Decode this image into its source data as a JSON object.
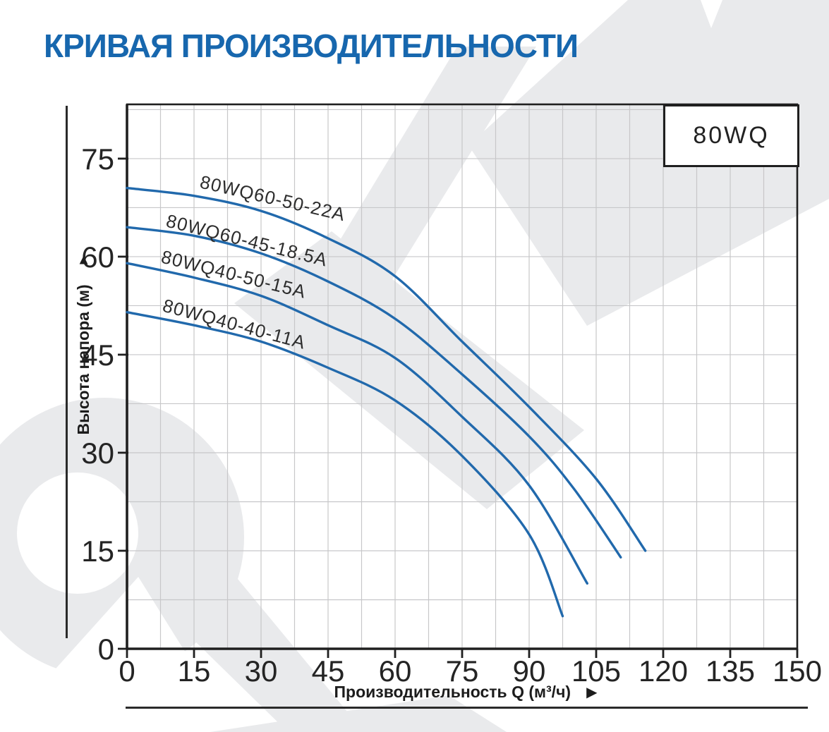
{
  "chart_data": {
    "type": "line",
    "title": "КРИВАЯ ПРОИЗВОДИТЕЛЬНОСТИ",
    "family_label": "80WQ",
    "x_axis": {
      "label": "Производительность Q (м³/ч)",
      "arrow": "▶",
      "ticks": [
        0,
        15,
        30,
        45,
        60,
        75,
        90,
        105,
        120,
        135,
        150
      ],
      "min": 0,
      "max": 150,
      "minor_step": 7.5
    },
    "y_axis": {
      "label": "Высота напора (м)",
      "arrow": "▲",
      "ticks": [
        0,
        15,
        30,
        45,
        60,
        75
      ],
      "min": 0,
      "max": 83.3,
      "minor_step": 7.5
    },
    "grid": true,
    "legend": "labels-on-curves",
    "colors": {
      "curve": "#2169ac",
      "grid": "#c7c7c9",
      "axis": "#1f1f1f",
      "title": "#1767ae",
      "watermark": "#e9eaec"
    },
    "series": [
      {
        "name": "80WQ60-50-22A",
        "points": [
          [
            0,
            70.5
          ],
          [
            15,
            69.3
          ],
          [
            30,
            67
          ],
          [
            45,
            62.8
          ],
          [
            60,
            57
          ],
          [
            75,
            47
          ],
          [
            90,
            37
          ],
          [
            105,
            26
          ],
          [
            116,
            15
          ]
        ],
        "label_pos": {
          "x": 282,
          "y": 266,
          "angle": 13
        }
      },
      {
        "name": "80WQ60-45-18.5A",
        "points": [
          [
            0,
            64.5
          ],
          [
            15,
            63.2
          ],
          [
            30,
            60.5
          ],
          [
            45,
            56.2
          ],
          [
            60,
            50.5
          ],
          [
            75,
            42
          ],
          [
            90,
            32.5
          ],
          [
            100,
            24.5
          ],
          [
            110.5,
            14
          ]
        ],
        "label_pos": {
          "x": 234,
          "y": 321,
          "angle": 14
        }
      },
      {
        "name": "80WQ40-50-15A",
        "points": [
          [
            0,
            59
          ],
          [
            15,
            56.8
          ],
          [
            30,
            54
          ],
          [
            45,
            49.5
          ],
          [
            60,
            44.5
          ],
          [
            75,
            35.5
          ],
          [
            90,
            25
          ],
          [
            103,
            10
          ]
        ],
        "label_pos": {
          "x": 227,
          "y": 372,
          "angle": 14
        }
      },
      {
        "name": "80WQ40-40-11A",
        "points": [
          [
            0,
            51.5
          ],
          [
            15,
            49.5
          ],
          [
            30,
            47
          ],
          [
            45,
            43
          ],
          [
            60,
            38
          ],
          [
            75,
            29.5
          ],
          [
            90,
            17.5
          ],
          [
            97.5,
            5
          ]
        ],
        "label_pos": {
          "x": 229,
          "y": 441,
          "angle": 15
        }
      }
    ]
  }
}
